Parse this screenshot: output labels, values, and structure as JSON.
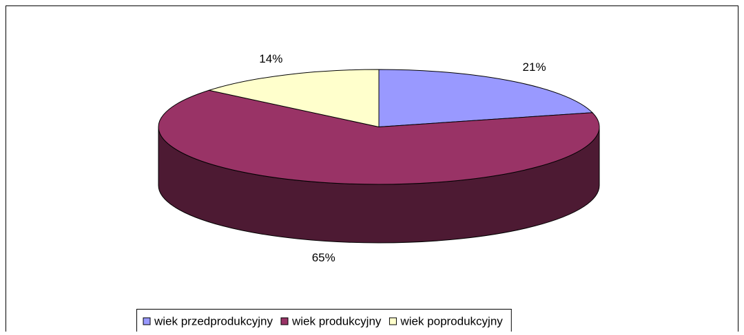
{
  "chart_data": {
    "type": "pie3d",
    "categories": [
      "wiek przedprodukcyjny",
      "wiek produkcyjny",
      "wiek poprodukcyjny"
    ],
    "values": [
      21,
      65,
      14
    ],
    "value_labels": [
      "21%",
      "65%",
      "14%"
    ],
    "colors": [
      "#9999ff",
      "#993366",
      "#ffffcc"
    ],
    "legend": "bottom"
  }
}
